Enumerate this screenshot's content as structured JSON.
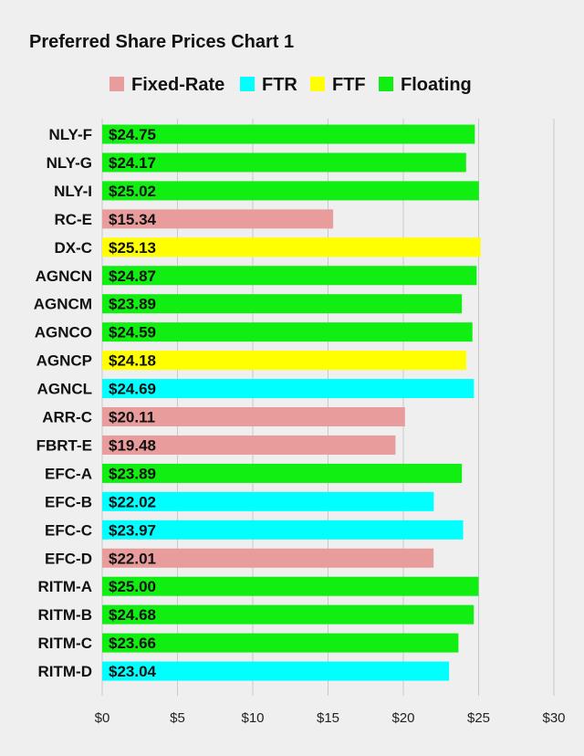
{
  "colors": {
    "Fixed-Rate": "#e89c9c",
    "FTR": "#00ffff",
    "FTF": "#ffff00",
    "Floating": "#11ee11",
    "background": "#efefef",
    "grid": "#c9c9c9"
  },
  "chart_data": {
    "type": "bar",
    "orientation": "horizontal",
    "title": "Preferred Share Prices Chart 1",
    "xlabel": "",
    "ylabel": "",
    "xlim": [
      0,
      30
    ],
    "grid": true,
    "legend_position": "top",
    "legend": [
      "Fixed-Rate",
      "FTR",
      "FTF",
      "Floating"
    ],
    "x_ticks": [
      "$0",
      "$5",
      "$10",
      "$15",
      "$20",
      "$25",
      "$30"
    ],
    "categories": [
      "NLY-F",
      "NLY-G",
      "NLY-I",
      "RC-E",
      "DX-C",
      "AGNCN",
      "AGNCM",
      "AGNCO",
      "AGNCP",
      "AGNCL",
      "ARR-C",
      "FBRT-E",
      "EFC-A",
      "EFC-B",
      "EFC-C",
      "EFC-D",
      "RITM-A",
      "RITM-B",
      "RITM-C",
      "RITM-D"
    ],
    "values": [
      24.75,
      24.17,
      25.02,
      15.34,
      25.13,
      24.87,
      23.89,
      24.59,
      24.18,
      24.69,
      20.11,
      19.48,
      23.89,
      22.02,
      23.97,
      22.01,
      25.0,
      24.68,
      23.66,
      23.04
    ],
    "value_labels": [
      "$24.75",
      "$24.17",
      "$25.02",
      "$15.34",
      "$25.13",
      "$24.87",
      "$23.89",
      "$24.59",
      "$24.18",
      "$24.69",
      "$20.11",
      "$19.48",
      "$23.89",
      "$22.02",
      "$23.97",
      "$22.01",
      "$25.00",
      "$24.68",
      "$23.66",
      "$23.04"
    ],
    "types": [
      "Floating",
      "Floating",
      "Floating",
      "Fixed-Rate",
      "FTF",
      "Floating",
      "Floating",
      "Floating",
      "FTF",
      "FTR",
      "Fixed-Rate",
      "Fixed-Rate",
      "Floating",
      "FTR",
      "FTR",
      "Fixed-Rate",
      "Floating",
      "Floating",
      "Floating",
      "FTR"
    ]
  }
}
